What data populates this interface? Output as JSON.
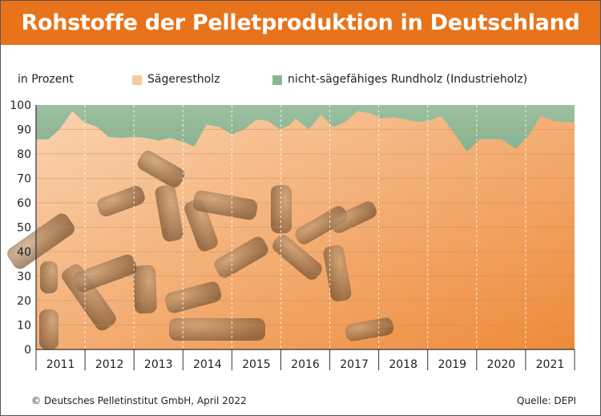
{
  "title": "Rohstoffe der Pelletproduktion in Deutschland",
  "footer": {
    "copyright": "© Deutsches Pelletinstitut GmbH, April 2022",
    "source": "Quelle: DEPI"
  },
  "chart_data": {
    "type": "area",
    "title": "Rohstoffe der Pelletproduktion in Deutschland",
    "ylabel": "in Prozent",
    "ylim": [
      0,
      100
    ],
    "yticks": [
      "0",
      "10",
      "20",
      "30",
      "40",
      "50",
      "60",
      "70",
      "80",
      "90",
      "100"
    ],
    "xlim": [
      2011,
      2022
    ],
    "categories": [
      "2011",
      "2012",
      "2013",
      "2014",
      "2015",
      "2016",
      "2017",
      "2018",
      "2019",
      "2020",
      "2021"
    ],
    "series": [
      {
        "name": "Sägerestholz",
        "color": "#F8C79B",
        "x": [
          2011.0,
          2011.25,
          2011.48,
          2011.74,
          2011.98,
          2012.25,
          2012.48,
          2012.74,
          2013.0,
          2013.25,
          2013.5,
          2013.74,
          2014.0,
          2014.23,
          2014.48,
          2014.74,
          2015.0,
          2015.25,
          2015.5,
          2015.74,
          2015.98,
          2016.2,
          2016.3,
          2016.57,
          2016.82,
          2017.07,
          2017.31,
          2017.57,
          2017.84,
          2018.05,
          2018.31,
          2018.57,
          2018.79,
          2019.02,
          2019.28,
          2019.52,
          2019.8,
          2020.07,
          2020.51,
          2020.8,
          2021.08,
          2021.31,
          2021.57,
          2021.84,
          2022.0
        ],
        "values": [
          86,
          86,
          90,
          97.5,
          93,
          91,
          87,
          86.5,
          87,
          86.5,
          85.5,
          86.5,
          85,
          83,
          92,
          91,
          88,
          90,
          94,
          93.5,
          90,
          92,
          94.5,
          90,
          96,
          91,
          93,
          97.5,
          96.5,
          94.5,
          95,
          94,
          93,
          93.5,
          95.5,
          89,
          81,
          86,
          86,
          82,
          88,
          95.5,
          93.5,
          93,
          93
        ]
      },
      {
        "name": "nicht-sägefähiges Rundholz (Industrieholz)",
        "color": "#8DB592"
      }
    ],
    "legend": "top"
  }
}
